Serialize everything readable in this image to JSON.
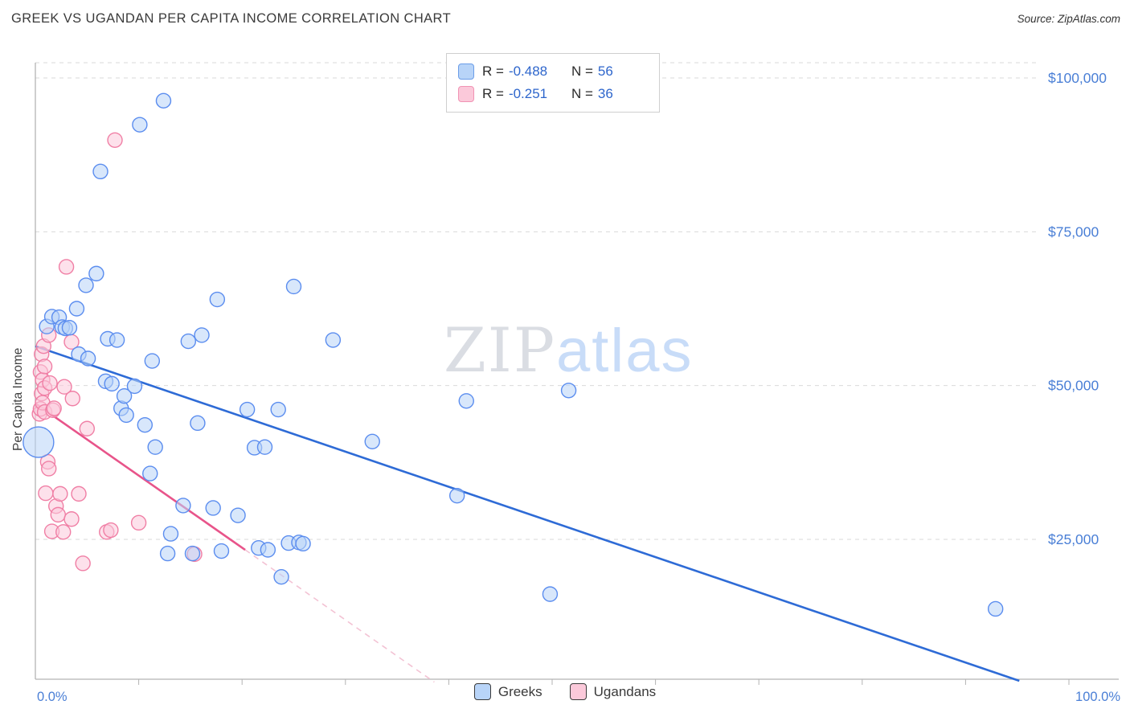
{
  "header": {
    "title": "GREEK VS UGANDAN PER CAPITA INCOME CORRELATION CHART",
    "source_prefix": "Source:",
    "source": "ZipAtlas.com"
  },
  "watermark": {
    "zip": "ZIP",
    "atlas": "atlas"
  },
  "legend_box": {
    "rows": [
      {
        "series": "Greeks",
        "r_label": "R =",
        "r_value": "-0.488",
        "n_label": "N =",
        "n_value": "56"
      },
      {
        "series": "Ugandans",
        "r_label": "R =",
        "r_value": "-0.251",
        "n_label": "N =",
        "n_value": "36"
      }
    ]
  },
  "bottom_legend": {
    "items": [
      {
        "label": "Greeks"
      },
      {
        "label": "Ugandans"
      }
    ]
  },
  "chart_data": {
    "type": "scatter",
    "title": "GREEK VS UGANDAN PER CAPITA INCOME CORRELATION CHART",
    "xlabel": "",
    "ylabel": "Per Capita Income",
    "x_axis": {
      "min": 0,
      "max": 100,
      "min_label": "0.0%",
      "max_label": "100.0%",
      "tick_step": 10
    },
    "y_axis": {
      "ticks": [
        25000,
        50000,
        75000,
        100000
      ],
      "tick_labels": [
        "$25,000",
        "$50,000",
        "$75,000",
        "$100,000"
      ],
      "min": 0,
      "max": 102500,
      "grid": "dashed"
    },
    "legend_position": "top-center",
    "series": [
      {
        "name": "Greeks",
        "R": -0.488,
        "N": 56,
        "fill": "#b8d4f8",
        "stroke": "#5b8def",
        "trend_color": "#2e6bd6",
        "trend": {
          "segments": [
            {
              "from": [
                0,
                56400
              ],
              "to": [
                95.2,
                2000
              ],
              "dashed": false
            }
          ]
        },
        "points": [
          [
            0.3,
            40800,
            19
          ],
          [
            1.1,
            59600
          ],
          [
            1.6,
            61200
          ],
          [
            2.3,
            61100
          ],
          [
            2.6,
            59500
          ],
          [
            2.9,
            59300
          ],
          [
            3.3,
            59400
          ],
          [
            4.0,
            62500
          ],
          [
            4.2,
            55100
          ],
          [
            4.9,
            66300
          ],
          [
            5.1,
            54400
          ],
          [
            5.9,
            68200
          ],
          [
            6.3,
            84800
          ],
          [
            6.8,
            50700
          ],
          [
            7.0,
            57600
          ],
          [
            7.4,
            50300
          ],
          [
            7.9,
            57400
          ],
          [
            8.3,
            46300
          ],
          [
            8.6,
            48300
          ],
          [
            8.8,
            45200
          ],
          [
            9.6,
            49900
          ],
          [
            10.1,
            92400
          ],
          [
            10.6,
            43600
          ],
          [
            11.1,
            35700
          ],
          [
            11.3,
            54000
          ],
          [
            11.6,
            40000
          ],
          [
            12.4,
            96300
          ],
          [
            12.8,
            22700
          ],
          [
            13.1,
            25900
          ],
          [
            14.3,
            30500
          ],
          [
            14.8,
            57200
          ],
          [
            15.2,
            22700
          ],
          [
            15.7,
            43900
          ],
          [
            16.1,
            58200
          ],
          [
            17.2,
            30100
          ],
          [
            17.6,
            64000
          ],
          [
            18.0,
            23100
          ],
          [
            19.6,
            28900
          ],
          [
            20.5,
            46100
          ],
          [
            21.2,
            39900
          ],
          [
            21.6,
            23600
          ],
          [
            22.2,
            40000
          ],
          [
            22.5,
            23300
          ],
          [
            23.5,
            46100
          ],
          [
            23.8,
            18900
          ],
          [
            24.5,
            24400
          ],
          [
            25.0,
            66100
          ],
          [
            25.5,
            24500
          ],
          [
            25.9,
            24300
          ],
          [
            28.8,
            57400
          ],
          [
            32.6,
            40900
          ],
          [
            40.8,
            32100
          ],
          [
            41.7,
            47500
          ],
          [
            49.8,
            16100
          ],
          [
            51.6,
            49200
          ],
          [
            92.9,
            13700
          ]
        ]
      },
      {
        "name": "Ugandans",
        "R": -0.251,
        "N": 36,
        "fill": "#fbc9da",
        "stroke": "#f07fa5",
        "trend_color": "#e8548a",
        "trend": {
          "segments": [
            {
              "from": [
                0,
                47100
              ],
              "to": [
                20.3,
                23300
              ],
              "dashed": false
            },
            {
              "from": [
                20.3,
                23300
              ],
              "to": [
                38.6,
                1800
              ],
              "dashed": true
            }
          ]
        },
        "points": [
          [
            0.4,
            45400
          ],
          [
            0.5,
            46200
          ],
          [
            0.5,
            52200
          ],
          [
            0.6,
            48700
          ],
          [
            0.6,
            55100
          ],
          [
            0.7,
            50900
          ],
          [
            0.7,
            47200
          ],
          [
            0.8,
            56400
          ],
          [
            0.9,
            53100
          ],
          [
            0.9,
            49600
          ],
          [
            0.9,
            45700
          ],
          [
            1.0,
            32500
          ],
          [
            1.2,
            37600
          ],
          [
            1.3,
            58200
          ],
          [
            1.3,
            36500
          ],
          [
            1.4,
            50400
          ],
          [
            1.6,
            26300
          ],
          [
            1.7,
            46000
          ],
          [
            1.8,
            46300
          ],
          [
            2.0,
            30400
          ],
          [
            2.2,
            29000
          ],
          [
            2.4,
            32400
          ],
          [
            2.7,
            26200
          ],
          [
            2.8,
            49800
          ],
          [
            3.0,
            69300
          ],
          [
            3.5,
            57100
          ],
          [
            3.5,
            28300
          ],
          [
            3.6,
            47900
          ],
          [
            4.2,
            32400
          ],
          [
            4.6,
            21100
          ],
          [
            5.0,
            43000
          ],
          [
            6.9,
            26200
          ],
          [
            7.3,
            26500
          ],
          [
            7.7,
            89900
          ],
          [
            10.0,
            27700
          ],
          [
            15.4,
            22600
          ]
        ]
      }
    ],
    "colors": {
      "grid": "#d9d9d9",
      "axis": "#b3b3b3",
      "axis_label_blue": "#4a7fd6"
    }
  }
}
